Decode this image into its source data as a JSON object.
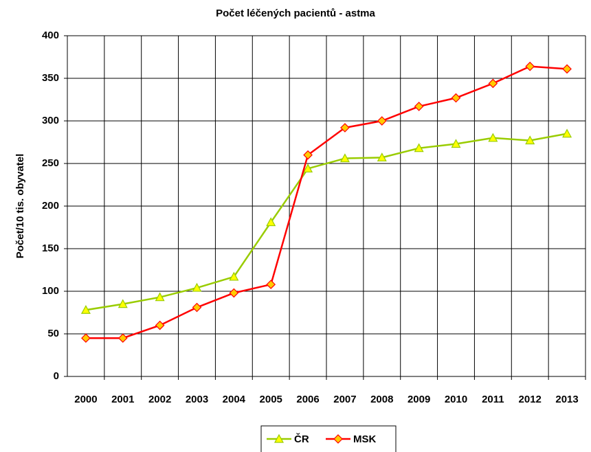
{
  "chart_data": {
    "type": "line",
    "title": "Počet léčených pacientů - astma",
    "y_label": "Počet/10 tis. obyvatel",
    "categories": [
      "2000",
      "2001",
      "2002",
      "2003",
      "2004",
      "2005",
      "2006",
      "2007",
      "2008",
      "2009",
      "2010",
      "2011",
      "2012",
      "2013"
    ],
    "series": [
      {
        "name": "ČR",
        "color": "#99cc00",
        "marker": "triangle",
        "marker_fill": "#ffff00",
        "values": [
          78,
          85,
          93,
          104,
          117,
          181,
          244,
          256,
          257,
          268,
          273,
          280,
          277,
          285
        ]
      },
      {
        "name": "MSK",
        "color": "#ff0000",
        "marker": "diamond",
        "marker_fill": "#ffcc00",
        "values": [
          45,
          45,
          60,
          81,
          98,
          108,
          260,
          292,
          300,
          317,
          327,
          344,
          364,
          361
        ]
      }
    ],
    "ylim": [
      0,
      400
    ],
    "yticks": [
      0,
      50,
      100,
      150,
      200,
      250,
      300,
      350,
      400
    ],
    "grid": true,
    "legend": "bottom"
  }
}
